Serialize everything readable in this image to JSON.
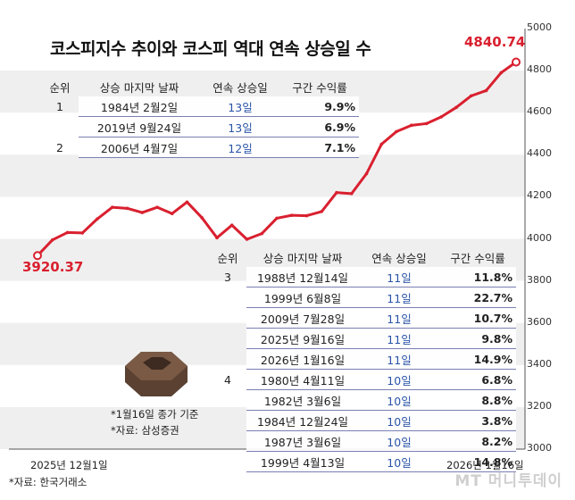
{
  "title": "코스피지수 추이와 코스피 역대 연속 상승일 수",
  "chart_data": {
    "type": "line",
    "x_start_label": "2025년 12월1일",
    "x_end_label": "2026년 1월16일",
    "yticks": [
      3000,
      3200,
      3400,
      3600,
      3800,
      4000,
      4200,
      4400,
      4600,
      4800,
      5000
    ],
    "ylim": [
      3000,
      5000
    ],
    "first_label": "3920.37",
    "last_label": "4840.74",
    "series": [
      {
        "color": "#d9202f",
        "values": [
          3920.37,
          3995,
          4030,
          4028,
          4095,
          4150,
          4145,
          4125,
          4150,
          4120,
          4175,
          4100,
          4005,
          4065,
          3998,
          4025,
          4098,
          4112,
          4110,
          4130,
          4220,
          4215,
          4310,
          4450,
          4510,
          4540,
          4548,
          4580,
          4625,
          4680,
          4705,
          4790,
          4840.74
        ]
      }
    ]
  },
  "table_top": {
    "headers": [
      "순위",
      "상승 마지막 날짜",
      "연속 상승일",
      "구간 수익률"
    ],
    "rows": [
      {
        "rank": "1",
        "date": "1984년 2월2일",
        "days": "13일",
        "ret": "9.9%"
      },
      {
        "rank": "",
        "date": "2019년 9월24일",
        "days": "13일",
        "ret": "6.9%"
      },
      {
        "rank": "2",
        "date": "2006년 4월7일",
        "days": "12일",
        "ret": "7.1%"
      }
    ]
  },
  "table_bottom": {
    "headers": [
      "순위",
      "상승 마지막 날짜",
      "연속 상승일",
      "구간 수익률"
    ],
    "rows": [
      {
        "rank": "3",
        "date": "1988년 12월14일",
        "days": "11일",
        "ret": "11.8%"
      },
      {
        "rank": "",
        "date": "1999년 6월8일",
        "days": "11일",
        "ret": "22.7%"
      },
      {
        "rank": "",
        "date": "2009년 7월28일",
        "days": "11일",
        "ret": "10.7%"
      },
      {
        "rank": "",
        "date": "2025년 9월16일",
        "days": "11일",
        "ret": "9.8%"
      },
      {
        "rank": "",
        "date": "2026년 1월16일",
        "days": "11일",
        "ret": "14.9%"
      },
      {
        "rank": "4",
        "date": "1980년 4월11일",
        "days": "10일",
        "ret": "6.8%"
      },
      {
        "rank": "",
        "date": "1982년 3월6일",
        "days": "10일",
        "ret": "8.8%"
      },
      {
        "rank": "",
        "date": "1984년 12월24일",
        "days": "10일",
        "ret": "3.8%"
      },
      {
        "rank": "",
        "date": "1987년 3월6일",
        "days": "10일",
        "ret": "8.2%"
      },
      {
        "rank": "",
        "date": "1999년 4월13일",
        "days": "10일",
        "ret": "14.8%"
      }
    ]
  },
  "notes": {
    "basis": "*1월16일 종가 기준",
    "source_table": "*자료: 삼성증권",
    "source_chart": "*자료: 한국거래소"
  },
  "brand": "MT 머니투데이"
}
